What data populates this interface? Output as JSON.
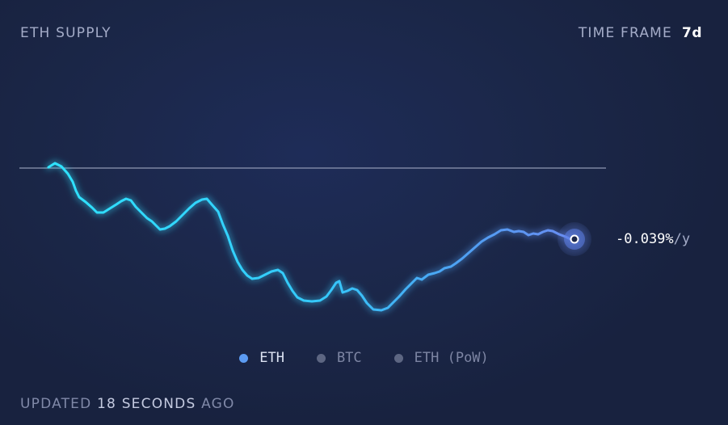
{
  "header": {
    "title": "ETH SUPPLY",
    "timeframe_label": "TIME FRAME",
    "timeframe_value": "7d"
  },
  "rate": {
    "value": "-0.039%",
    "unit": "/y"
  },
  "legend": [
    {
      "label": "ETH",
      "color": "#5c9bf2",
      "text_color": "#dde3f3",
      "active": true
    },
    {
      "label": "BTC",
      "color": "#5d6682",
      "text_color": "#7d85a3",
      "active": false
    },
    {
      "label": "ETH (PoW)",
      "color": "#5d6682",
      "text_color": "#7d85a3",
      "active": false
    }
  ],
  "footer": {
    "prefix": "UPDATED",
    "count": "18",
    "unit": "SECONDS",
    "suffix": "AGO"
  },
  "colors": {
    "line_start": "#2ee6ff",
    "line_end": "#6a8cf2",
    "reference_line": "#8f98b3",
    "background": "#1b2749"
  }
}
